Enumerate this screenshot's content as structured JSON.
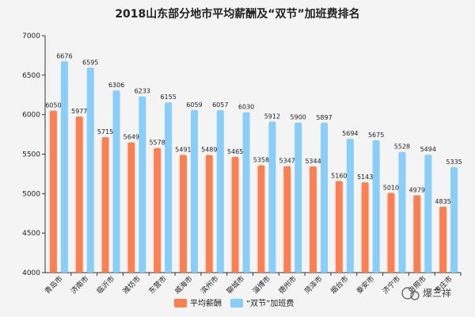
{
  "chart_data": {
    "type": "bar",
    "title": "2018山东部分地市平均薪酬及“双节”加班费排名",
    "categories": [
      "青岛市",
      "济南市",
      "临沂市",
      "潍坊市",
      "东营市",
      "威海市",
      "滨州市",
      "聊城市",
      "淄博市",
      "德州市",
      "菏泽市",
      "烟台市",
      "泰安市",
      "济宁市",
      "日照市",
      "枣庄市"
    ],
    "series": [
      {
        "name": "平均薪酬",
        "color": "#ff7f50",
        "values": [
          6050,
          5977,
          5715,
          5649,
          5578,
          5491,
          5489,
          5465,
          5358,
          5347,
          5344,
          5160,
          5143,
          5010,
          4979,
          4835
        ]
      },
      {
        "name": "“双节”加班费",
        "color": "#87cefa",
        "values": [
          6676,
          6595,
          6306,
          6233,
          6155,
          6059,
          6057,
          6030,
          5912,
          5900,
          5897,
          5694,
          5675,
          5528,
          5494,
          5335
        ]
      }
    ],
    "ylim": [
      4000,
      7000
    ],
    "yticks": [
      4000,
      4500,
      5000,
      5500,
      6000,
      6500,
      7000
    ],
    "xlabel": "",
    "ylabel": "",
    "grid": false,
    "legend_position": "bottom-center"
  },
  "watermark": "爆三祥"
}
